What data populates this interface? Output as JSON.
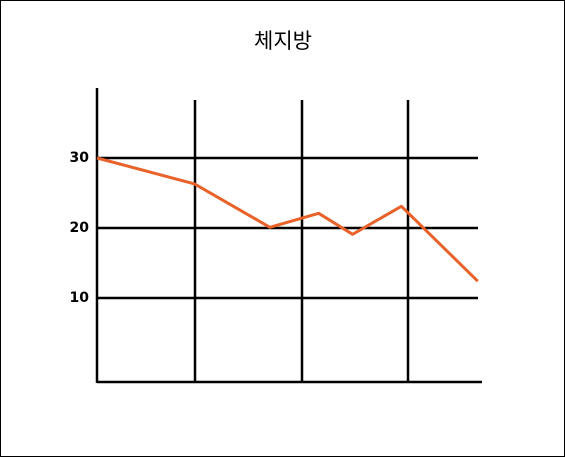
{
  "chart_data": {
    "type": "line",
    "title": "체지방",
    "x": [
      0,
      0.92,
      1.63,
      2.09,
      2.41,
      2.87,
      3.59
    ],
    "series": [
      {
        "name": null,
        "color": "#e8622a",
        "values": [
          30,
          26.3,
          20.1,
          22.1,
          19.1,
          23.1,
          12.4
        ]
      }
    ],
    "xlim": [
      0,
      3.63
    ],
    "ylim": [
      -2,
      40
    ],
    "yticks": [
      10,
      20,
      30
    ],
    "grid": true
  }
}
